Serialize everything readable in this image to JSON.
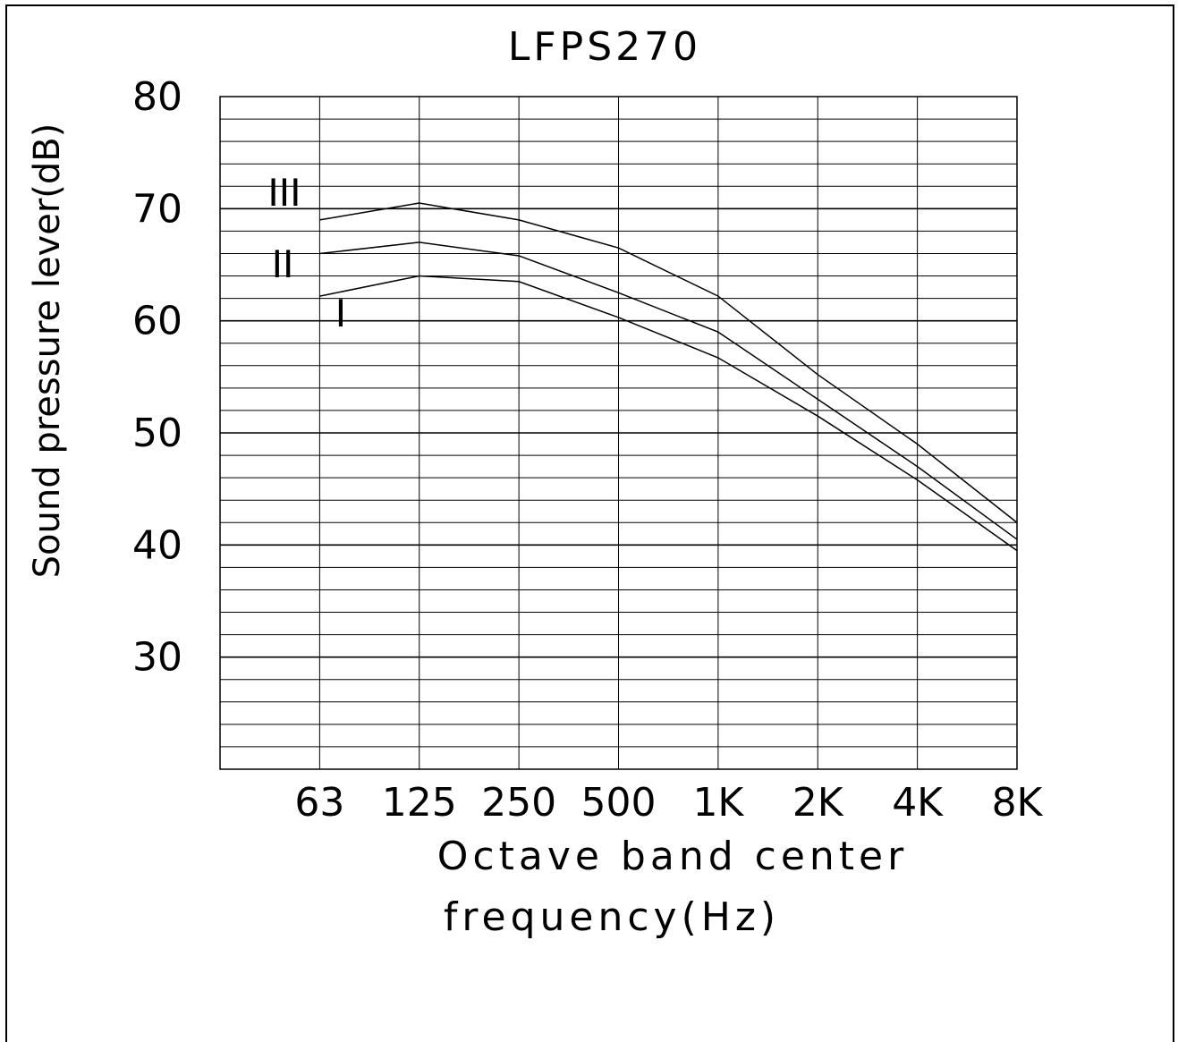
{
  "chart_data": {
    "type": "line",
    "title": "LFPS270",
    "xlabel_line1": "Octave band center",
    "xlabel_line2": "frequency(Hz)",
    "ylabel": "Sound pressure lever(dB)",
    "categories": [
      "63",
      "125",
      "250",
      "500",
      "1K",
      "2K",
      "4K",
      "8K"
    ],
    "ylim": [
      20,
      80
    ],
    "yticks": [
      80,
      70,
      60,
      50,
      40,
      30
    ],
    "grid": true,
    "series": [
      {
        "name": "III",
        "values": [
          69,
          70.5,
          69,
          66.5,
          62.2,
          55.2,
          49,
          42
        ]
      },
      {
        "name": "II",
        "values": [
          66,
          67,
          65.8,
          62.5,
          59,
          53,
          47,
          40.5
        ]
      },
      {
        "name": "I",
        "values": [
          62.2,
          64,
          63.5,
          60.3,
          56.7,
          51.5,
          45.8,
          39.5
        ]
      }
    ],
    "line_color": "#000000"
  }
}
